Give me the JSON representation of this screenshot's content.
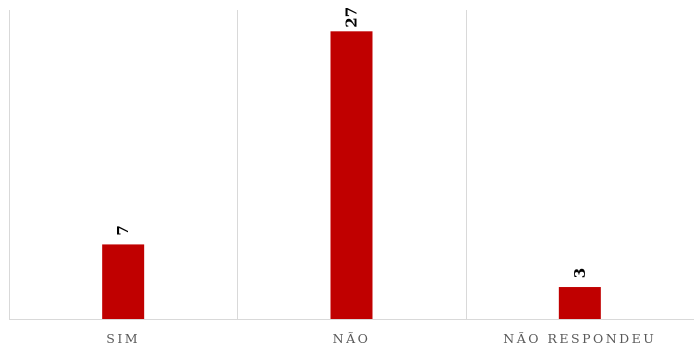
{
  "chart_data": {
    "type": "bar",
    "categories": [
      "SIM",
      "NÃO",
      "NÃO RESPONDEU"
    ],
    "values": [
      7,
      27,
      3
    ],
    "ylim": [
      0,
      29
    ],
    "grid": true,
    "legend": "none",
    "bar_color": "#C00000",
    "data_labels": [
      "7",
      "27",
      "3"
    ]
  }
}
